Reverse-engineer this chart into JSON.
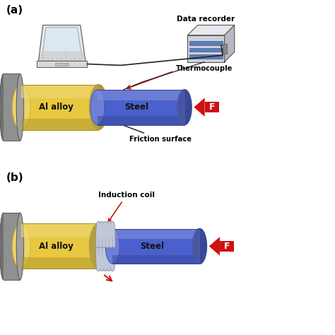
{
  "fig_width": 4.74,
  "fig_height": 4.74,
  "dpi": 100,
  "bg_color": "#ffffff",
  "label_a": "(a)",
  "label_b": "(b)",
  "text_al_alloy": "Al alloy",
  "text_steel": "Steel",
  "text_f": "F",
  "text_thermocouple": "Thermocouple",
  "text_friction": "Friction surface",
  "text_data_recorder": "Data recorder",
  "text_induction_coil": "Induction coil",
  "color_al": "#E8C840",
  "color_steel": "#4A60CC",
  "color_gray_body": "#888888",
  "color_gray_face": "#aaaaaa",
  "color_red": "#CC1111",
  "color_white": "#ffffff",
  "color_coil": "#C0C8D8",
  "color_coil_edge": "#888899"
}
